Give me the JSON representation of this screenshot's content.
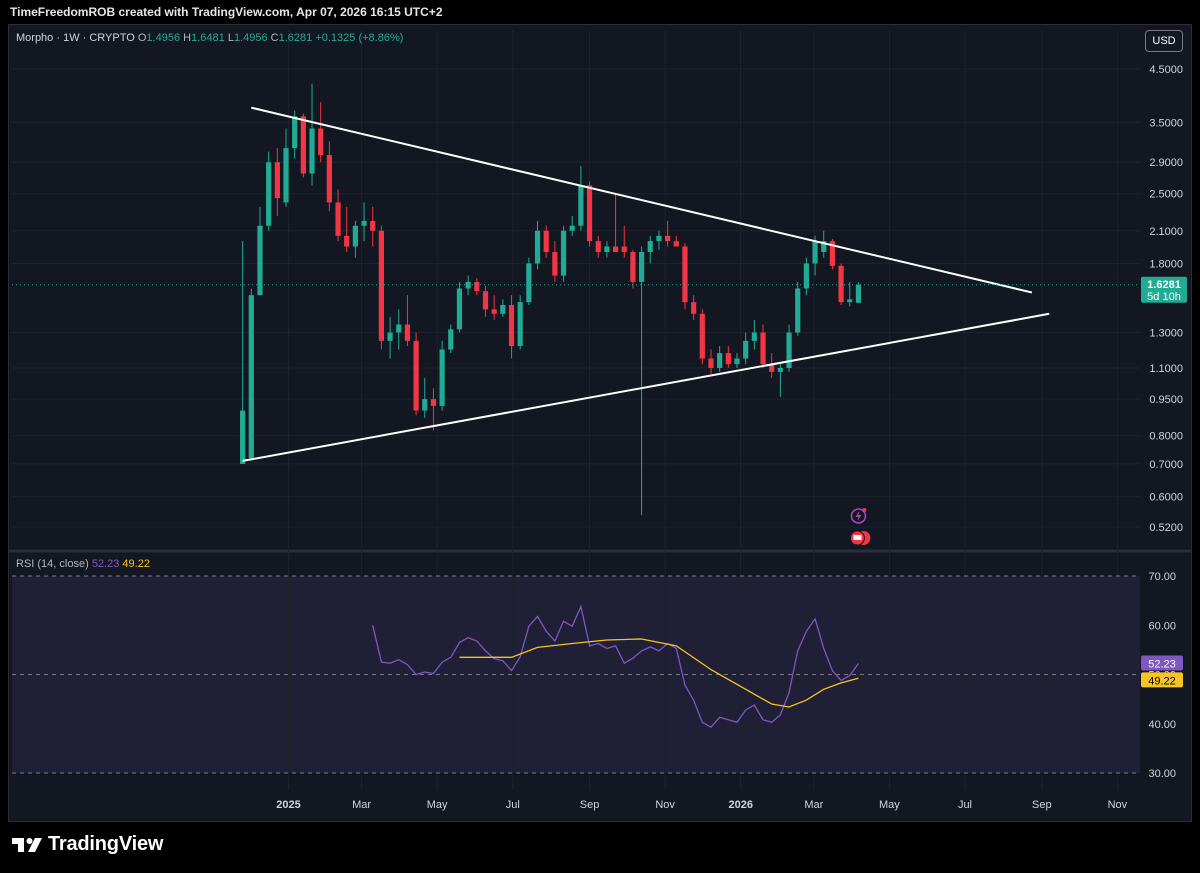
{
  "header": {
    "credit": "TimeFreedomROB created with TradingView.com, Apr 07, 2026 16:15 UTC+2"
  },
  "legend": {
    "symbol": "Morpho · 1W · CRYPTO",
    "o_label": "O",
    "o_value": "1.4956",
    "h_label": "H",
    "h_value": "1.6481",
    "l_label": "L",
    "l_value": "1.4956",
    "c_label": "C",
    "c_value": "1.6281",
    "change": "+0.1325 (+8.86%)"
  },
  "currency_button": "USD",
  "price_badge": {
    "value": "1.6281",
    "countdown": "5d 10h"
  },
  "rsi_legend": {
    "label": "RSI (14, close)",
    "rsi": "52.23",
    "ma": "49.22"
  },
  "brand": {
    "name": "TradingView"
  },
  "colors": {
    "up": "#22ab94",
    "down": "#f23645",
    "rsi": "#7e57c2",
    "rsi_ma": "#f7c325",
    "background": "#131722"
  },
  "chart_data": [
    {
      "type": "candlestick",
      "title": "Morpho · 1W · CRYPTO",
      "scale": "log",
      "ylim": [
        0.48,
        5.0
      ],
      "y_ticks": [
        "4.5000",
        "3.5000",
        "2.9000",
        "2.5000",
        "2.1000",
        "1.8000",
        "1.3000",
        "1.1000",
        "0.9500",
        "0.8000",
        "0.7000",
        "0.6000",
        "0.5200"
      ],
      "x_ticks": [
        "2025",
        "Mar",
        "May",
        "Jul",
        "Sep",
        "Nov",
        "2026",
        "Mar",
        "May",
        "Jul",
        "Sep",
        "Nov"
      ],
      "last_price": 1.6281,
      "trendlines": [
        {
          "name": "upper",
          "from": {
            "x": "2024-12-02",
            "y": 3.75
          },
          "to": {
            "x": "2026-08-24",
            "y": 1.57
          }
        },
        {
          "name": "lower",
          "from": {
            "x": "2024-11-25",
            "y": 0.71
          },
          "to": {
            "x": "2026-09-07",
            "y": 1.42
          }
        }
      ],
      "candles": [
        {
          "x": "2024-11-25",
          "o": 0.7,
          "h": 2.0,
          "l": 0.7,
          "c": 0.9
        },
        {
          "x": "2024-12-02",
          "o": 0.72,
          "h": 1.6,
          "l": 0.71,
          "c": 1.55
        },
        {
          "x": "2024-12-09",
          "o": 1.55,
          "h": 2.35,
          "l": 1.55,
          "c": 2.15
        },
        {
          "x": "2024-12-16",
          "o": 2.15,
          "h": 3.05,
          "l": 2.1,
          "c": 2.9
        },
        {
          "x": "2024-12-23",
          "o": 2.9,
          "h": 3.1,
          "l": 2.25,
          "c": 2.45
        },
        {
          "x": "2024-12-30",
          "o": 2.4,
          "h": 3.4,
          "l": 2.35,
          "c": 3.1
        },
        {
          "x": "2025-01-06",
          "o": 3.1,
          "h": 3.7,
          "l": 2.95,
          "c": 3.6
        },
        {
          "x": "2025-01-13",
          "o": 3.6,
          "h": 3.65,
          "l": 2.7,
          "c": 2.75
        },
        {
          "x": "2025-01-20",
          "o": 2.75,
          "h": 4.2,
          "l": 2.6,
          "c": 3.4
        },
        {
          "x": "2025-01-27",
          "o": 3.4,
          "h": 3.85,
          "l": 2.9,
          "c": 3.0
        },
        {
          "x": "2025-02-03",
          "o": 3.0,
          "h": 3.2,
          "l": 2.3,
          "c": 2.4
        },
        {
          "x": "2025-02-10",
          "o": 2.4,
          "h": 2.55,
          "l": 2.0,
          "c": 2.05
        },
        {
          "x": "2025-02-17",
          "o": 2.05,
          "h": 2.35,
          "l": 1.9,
          "c": 1.95
        },
        {
          "x": "2025-02-24",
          "o": 1.95,
          "h": 2.2,
          "l": 1.85,
          "c": 2.15
        },
        {
          "x": "2025-03-03",
          "o": 2.15,
          "h": 2.4,
          "l": 2.0,
          "c": 2.2
        },
        {
          "x": "2025-03-10",
          "o": 2.2,
          "h": 2.35,
          "l": 1.95,
          "c": 2.1
        },
        {
          "x": "2025-03-17",
          "o": 2.1,
          "h": 2.15,
          "l": 1.2,
          "c": 1.25
        },
        {
          "x": "2025-03-24",
          "o": 1.25,
          "h": 1.4,
          "l": 1.15,
          "c": 1.3
        },
        {
          "x": "2025-03-31",
          "o": 1.3,
          "h": 1.45,
          "l": 1.2,
          "c": 1.35
        },
        {
          "x": "2025-04-07",
          "o": 1.35,
          "h": 1.55,
          "l": 1.22,
          "c": 1.25
        },
        {
          "x": "2025-04-14",
          "o": 1.25,
          "h": 1.3,
          "l": 0.88,
          "c": 0.9
        },
        {
          "x": "2025-04-21",
          "o": 0.9,
          "h": 1.05,
          "l": 0.87,
          "c": 0.95
        },
        {
          "x": "2025-04-28",
          "o": 0.95,
          "h": 1.0,
          "l": 0.82,
          "c": 0.92
        },
        {
          "x": "2025-05-05",
          "o": 0.92,
          "h": 1.25,
          "l": 0.9,
          "c": 1.2
        },
        {
          "x": "2025-05-12",
          "o": 1.2,
          "h": 1.35,
          "l": 1.18,
          "c": 1.32
        },
        {
          "x": "2025-05-19",
          "o": 1.32,
          "h": 1.65,
          "l": 1.3,
          "c": 1.6
        },
        {
          "x": "2025-05-26",
          "o": 1.6,
          "h": 1.7,
          "l": 1.55,
          "c": 1.65
        },
        {
          "x": "2025-06-02",
          "o": 1.65,
          "h": 1.68,
          "l": 1.55,
          "c": 1.58
        },
        {
          "x": "2025-06-09",
          "o": 1.58,
          "h": 1.62,
          "l": 1.4,
          "c": 1.45
        },
        {
          "x": "2025-06-16",
          "o": 1.45,
          "h": 1.55,
          "l": 1.38,
          "c": 1.42
        },
        {
          "x": "2025-06-23",
          "o": 1.42,
          "h": 1.52,
          "l": 1.4,
          "c": 1.48
        },
        {
          "x": "2025-06-30",
          "o": 1.48,
          "h": 1.55,
          "l": 1.15,
          "c": 1.22
        },
        {
          "x": "2025-07-07",
          "o": 1.22,
          "h": 1.55,
          "l": 1.2,
          "c": 1.5
        },
        {
          "x": "2025-07-14",
          "o": 1.5,
          "h": 1.85,
          "l": 1.48,
          "c": 1.8
        },
        {
          "x": "2025-07-21",
          "o": 1.8,
          "h": 2.2,
          "l": 1.75,
          "c": 2.1
        },
        {
          "x": "2025-07-28",
          "o": 2.1,
          "h": 2.15,
          "l": 1.85,
          "c": 1.9
        },
        {
          "x": "2025-08-04",
          "o": 1.9,
          "h": 2.0,
          "l": 1.65,
          "c": 1.7
        },
        {
          "x": "2025-08-11",
          "o": 1.7,
          "h": 2.15,
          "l": 1.65,
          "c": 2.1
        },
        {
          "x": "2025-08-18",
          "o": 2.1,
          "h": 2.25,
          "l": 2.05,
          "c": 2.15
        },
        {
          "x": "2025-08-25",
          "o": 2.15,
          "h": 2.85,
          "l": 2.1,
          "c": 2.6
        },
        {
          "x": "2025-09-01",
          "o": 2.6,
          "h": 2.65,
          "l": 1.95,
          "c": 2.0
        },
        {
          "x": "2025-09-08",
          "o": 2.0,
          "h": 2.05,
          "l": 1.85,
          "c": 1.9
        },
        {
          "x": "2025-09-15",
          "o": 1.9,
          "h": 2.0,
          "l": 1.85,
          "c": 1.95
        },
        {
          "x": "2025-09-22",
          "o": 1.95,
          "h": 2.5,
          "l": 1.9,
          "c": 1.9
        },
        {
          "x": "2025-09-29",
          "o": 1.95,
          "h": 2.15,
          "l": 1.85,
          "c": 1.9
        },
        {
          "x": "2025-10-06",
          "o": 1.9,
          "h": 1.92,
          "l": 1.6,
          "c": 1.65
        },
        {
          "x": "2025-10-13",
          "o": 1.65,
          "h": 1.95,
          "l": 0.55,
          "c": 1.9
        },
        {
          "x": "2025-10-20",
          "o": 1.9,
          "h": 2.05,
          "l": 1.8,
          "c": 2.0
        },
        {
          "x": "2025-10-27",
          "o": 2.0,
          "h": 2.1,
          "l": 1.92,
          "c": 2.05
        },
        {
          "x": "2025-11-03",
          "o": 2.05,
          "h": 2.2,
          "l": 1.95,
          "c": 2.0
        },
        {
          "x": "2025-11-10",
          "o": 2.0,
          "h": 2.05,
          "l": 1.95,
          "c": 1.95
        },
        {
          "x": "2025-11-17",
          "o": 1.95,
          "h": 1.98,
          "l": 1.45,
          "c": 1.5
        },
        {
          "x": "2025-11-24",
          "o": 1.5,
          "h": 1.55,
          "l": 1.38,
          "c": 1.42
        },
        {
          "x": "2025-12-01",
          "o": 1.42,
          "h": 1.45,
          "l": 1.12,
          "c": 1.15
        },
        {
          "x": "2025-12-08",
          "o": 1.15,
          "h": 1.2,
          "l": 1.07,
          "c": 1.1
        },
        {
          "x": "2025-12-15",
          "o": 1.1,
          "h": 1.22,
          "l": 1.08,
          "c": 1.18
        },
        {
          "x": "2025-12-22",
          "o": 1.18,
          "h": 1.22,
          "l": 1.1,
          "c": 1.12
        },
        {
          "x": "2025-12-29",
          "o": 1.12,
          "h": 1.18,
          "l": 1.1,
          "c": 1.15
        },
        {
          "x": "2026-01-05",
          "o": 1.15,
          "h": 1.3,
          "l": 1.12,
          "c": 1.25
        },
        {
          "x": "2026-01-12",
          "o": 1.25,
          "h": 1.38,
          "l": 1.2,
          "c": 1.3
        },
        {
          "x": "2026-01-19",
          "o": 1.3,
          "h": 1.35,
          "l": 1.1,
          "c": 1.12
        },
        {
          "x": "2026-01-26",
          "o": 1.12,
          "h": 1.18,
          "l": 1.05,
          "c": 1.08
        },
        {
          "x": "2026-02-02",
          "o": 1.08,
          "h": 1.12,
          "l": 0.96,
          "c": 1.1
        },
        {
          "x": "2026-02-09",
          "o": 1.1,
          "h": 1.35,
          "l": 1.08,
          "c": 1.3
        },
        {
          "x": "2026-02-16",
          "o": 1.3,
          "h": 1.65,
          "l": 1.28,
          "c": 1.6
        },
        {
          "x": "2026-02-23",
          "o": 1.6,
          "h": 1.85,
          "l": 1.55,
          "c": 1.8
        },
        {
          "x": "2026-03-02",
          "o": 1.8,
          "h": 2.05,
          "l": 1.7,
          "c": 2.0
        },
        {
          "x": "2026-03-09",
          "o": 1.9,
          "h": 2.1,
          "l": 1.85,
          "c": 2.0
        },
        {
          "x": "2026-03-16",
          "o": 2.0,
          "h": 2.02,
          "l": 1.75,
          "c": 1.78
        },
        {
          "x": "2026-03-23",
          "o": 1.78,
          "h": 1.8,
          "l": 1.48,
          "c": 1.5
        },
        {
          "x": "2026-03-30",
          "o": 1.5,
          "h": 1.65,
          "l": 1.47,
          "c": 1.52
        },
        {
          "x": "2026-04-06",
          "o": 1.4956,
          "h": 1.6481,
          "l": 1.4956,
          "c": 1.6281
        }
      ]
    },
    {
      "type": "line",
      "title": "RSI (14, close)",
      "ylim": [
        28,
        72
      ],
      "y_ticks": [
        "70.00",
        "60.00",
        "50.00",
        "40.00",
        "30.00"
      ],
      "levels": [
        70,
        50,
        30
      ],
      "series": [
        {
          "name": "RSI",
          "color": "#7e57c2",
          "values": [
            {
              "x": "2025-03-10",
              "y": 60.0
            },
            {
              "x": "2025-03-17",
              "y": 52.5
            },
            {
              "x": "2025-03-24",
              "y": 52.3
            },
            {
              "x": "2025-03-31",
              "y": 53.0
            },
            {
              "x": "2025-04-07",
              "y": 52.0
            },
            {
              "x": "2025-04-14",
              "y": 50.0
            },
            {
              "x": "2025-04-21",
              "y": 50.5
            },
            {
              "x": "2025-04-28",
              "y": 50.2
            },
            {
              "x": "2025-05-05",
              "y": 52.5
            },
            {
              "x": "2025-05-12",
              "y": 53.5
            },
            {
              "x": "2025-05-19",
              "y": 56.5
            },
            {
              "x": "2025-05-26",
              "y": 57.5
            },
            {
              "x": "2025-06-02",
              "y": 56.8
            },
            {
              "x": "2025-06-09",
              "y": 54.8
            },
            {
              "x": "2025-06-16",
              "y": 53.2
            },
            {
              "x": "2025-06-23",
              "y": 52.8
            },
            {
              "x": "2025-06-30",
              "y": 50.8
            },
            {
              "x": "2025-07-07",
              "y": 53.6
            },
            {
              "x": "2025-07-14",
              "y": 59.8
            },
            {
              "x": "2025-07-21",
              "y": 61.8
            },
            {
              "x": "2025-07-28",
              "y": 58.8
            },
            {
              "x": "2025-08-04",
              "y": 56.8
            },
            {
              "x": "2025-08-11",
              "y": 60.8
            },
            {
              "x": "2025-08-18",
              "y": 59.8
            },
            {
              "x": "2025-08-25",
              "y": 63.8
            },
            {
              "x": "2025-09-01",
              "y": 55.8
            },
            {
              "x": "2025-09-08",
              "y": 56.3
            },
            {
              "x": "2025-09-15",
              "y": 55.3
            },
            {
              "x": "2025-09-22",
              "y": 55.8
            },
            {
              "x": "2025-09-29",
              "y": 52.3
            },
            {
              "x": "2025-10-06",
              "y": 53.3
            },
            {
              "x": "2025-10-13",
              "y": 54.8
            },
            {
              "x": "2025-10-20",
              "y": 55.6
            },
            {
              "x": "2025-10-27",
              "y": 54.8
            },
            {
              "x": "2025-11-03",
              "y": 56.3
            },
            {
              "x": "2025-11-10",
              "y": 55.3
            },
            {
              "x": "2025-11-17",
              "y": 47.8
            },
            {
              "x": "2025-11-24",
              "y": 44.8
            },
            {
              "x": "2025-12-01",
              "y": 40.3
            },
            {
              "x": "2025-12-08",
              "y": 39.3
            },
            {
              "x": "2025-12-15",
              "y": 41.3
            },
            {
              "x": "2025-12-22",
              "y": 40.8
            },
            {
              "x": "2025-12-29",
              "y": 40.3
            },
            {
              "x": "2026-01-05",
              "y": 42.8
            },
            {
              "x": "2026-01-12",
              "y": 43.8
            },
            {
              "x": "2026-01-19",
              "y": 40.8
            },
            {
              "x": "2026-01-26",
              "y": 40.3
            },
            {
              "x": "2026-02-02",
              "y": 41.8
            },
            {
              "x": "2026-02-09",
              "y": 46.3
            },
            {
              "x": "2026-02-16",
              "y": 54.8
            },
            {
              "x": "2026-02-23",
              "y": 58.8
            },
            {
              "x": "2026-03-02",
              "y": 61.3
            },
            {
              "x": "2026-03-09",
              "y": 55.3
            },
            {
              "x": "2026-03-16",
              "y": 50.8
            },
            {
              "x": "2026-03-23",
              "y": 48.8
            },
            {
              "x": "2026-03-30",
              "y": 49.8
            },
            {
              "x": "2026-04-06",
              "y": 52.23
            }
          ]
        },
        {
          "name": "RSI-based MA",
          "color": "#f7c325",
          "values": [
            {
              "x": "2025-05-19",
              "y": 53.5
            },
            {
              "x": "2025-06-16",
              "y": 53.5
            },
            {
              "x": "2025-06-30",
              "y": 53.5
            },
            {
              "x": "2025-07-21",
              "y": 55.5
            },
            {
              "x": "2025-08-18",
              "y": 56.3
            },
            {
              "x": "2025-09-15",
              "y": 57.0
            },
            {
              "x": "2025-10-13",
              "y": 57.2
            },
            {
              "x": "2025-11-10",
              "y": 55.8
            },
            {
              "x": "2025-12-08",
              "y": 51.0
            },
            {
              "x": "2026-01-05",
              "y": 47.0
            },
            {
              "x": "2026-01-26",
              "y": 44.0
            },
            {
              "x": "2026-02-09",
              "y": 43.4
            },
            {
              "x": "2026-02-23",
              "y": 44.8
            },
            {
              "x": "2026-03-09",
              "y": 47.0
            },
            {
              "x": "2026-03-23",
              "y": 48.3
            },
            {
              "x": "2026-04-06",
              "y": 49.22
            }
          ]
        }
      ]
    }
  ]
}
